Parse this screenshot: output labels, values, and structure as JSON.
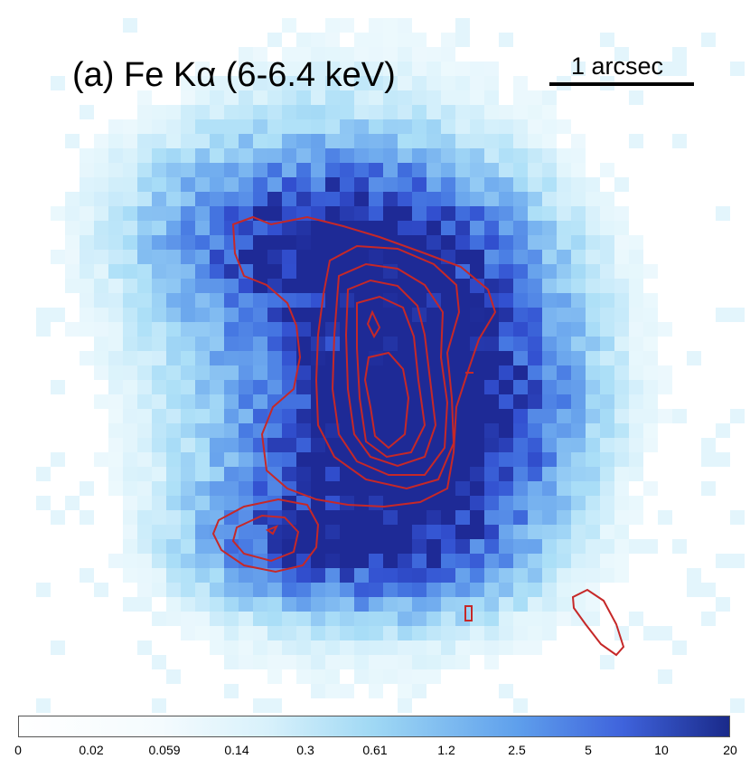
{
  "title": "(a) Fe Kα (6-6.4 keV)",
  "scale_bar_label": "1 arcsec",
  "colorbar": {
    "ticks": [
      "0",
      "0.02",
      "0.059",
      "0.14",
      "0.3",
      "0.61",
      "1.2",
      "2.5",
      "5",
      "10",
      "20"
    ],
    "low_color": "#ffffff",
    "mid_color": "#9fd8f4",
    "high_color": "#1a2a8a"
  },
  "contour_color": "#c62828"
}
